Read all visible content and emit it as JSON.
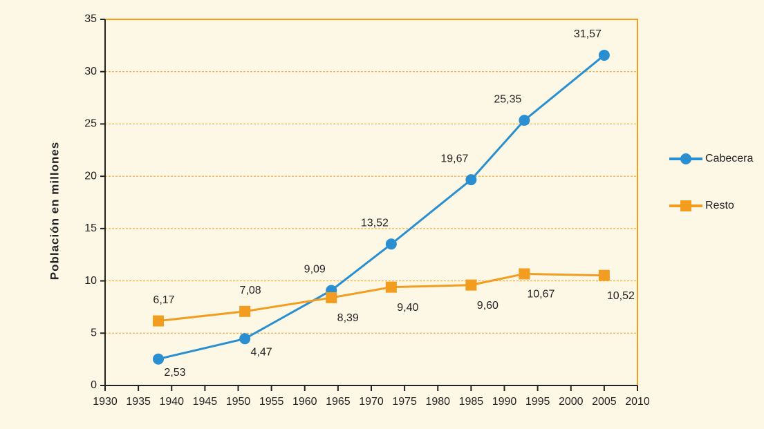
{
  "chart_data": {
    "type": "line",
    "y_label": "Población en millones",
    "x": [
      1938,
      1951,
      1964,
      1973,
      1985,
      1993,
      2005
    ],
    "series": [
      {
        "name": "Cabecera",
        "color": "#2a8fd0",
        "marker": "circle",
        "values": [
          2.53,
          4.47,
          9.09,
          13.52,
          19.67,
          25.35,
          31.57
        ],
        "value_labels": [
          "2,53",
          "4,47",
          "9,09",
          "13,52",
          "19,67",
          "25,35",
          "31,57"
        ]
      },
      {
        "name": "Resto",
        "color": "#f29d1f",
        "marker": "square",
        "values": [
          6.17,
          7.08,
          8.39,
          9.4,
          9.6,
          10.67,
          10.52
        ],
        "value_labels": [
          "6,17",
          "7,08",
          "8,39",
          "9,40",
          "9,60",
          "10,67",
          "10,52"
        ]
      }
    ],
    "xlim": [
      1930,
      2010
    ],
    "xticks": [
      1930,
      1935,
      1940,
      1945,
      1950,
      1955,
      1960,
      1965,
      1970,
      1975,
      1980,
      1985,
      1990,
      1995,
      2000,
      2005,
      2010
    ],
    "ylim": [
      0,
      35
    ],
    "yticks": [
      0,
      5,
      10,
      15,
      20,
      25,
      30,
      35
    ],
    "grid": true,
    "legend": "right"
  }
}
